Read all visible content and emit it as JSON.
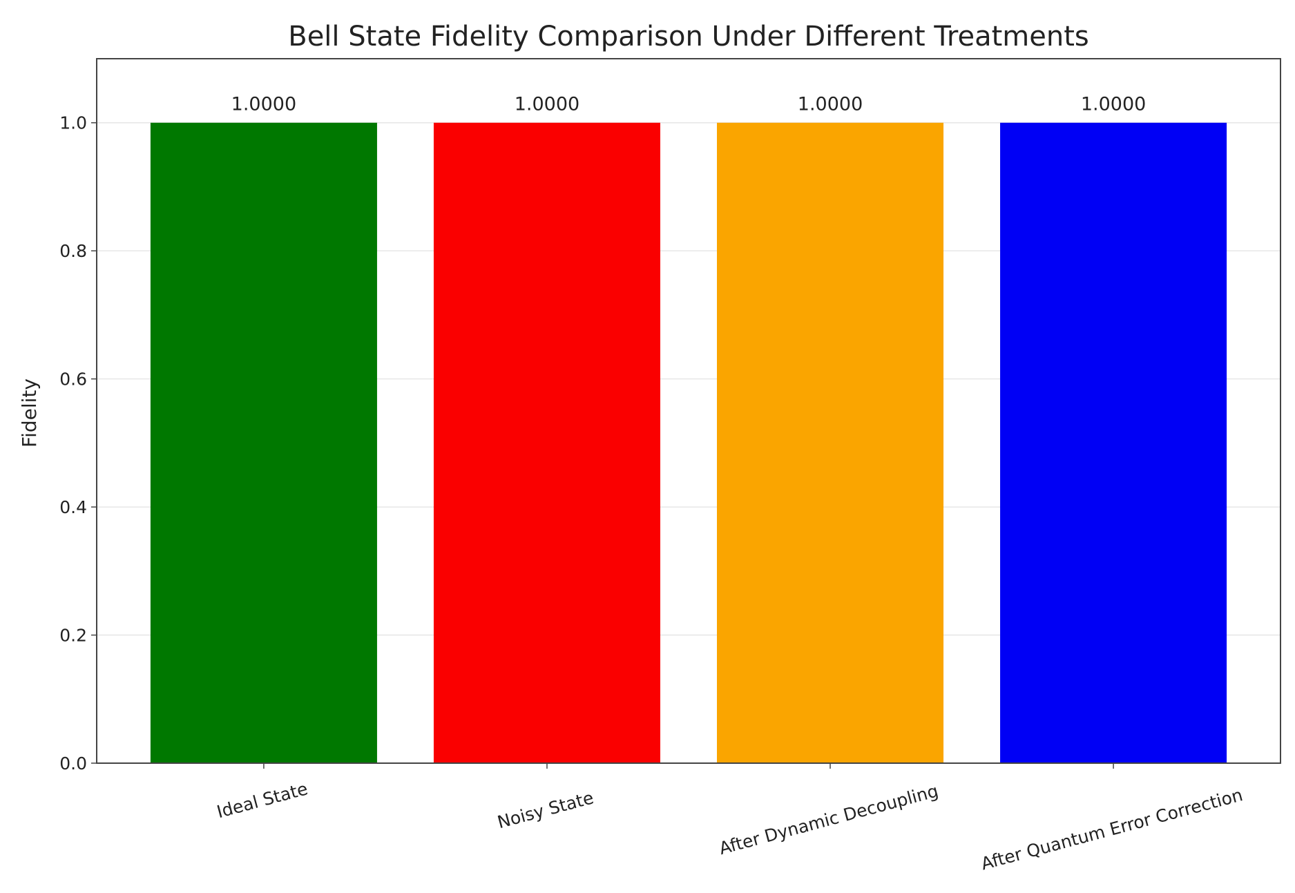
{
  "chart_data": {
    "type": "bar",
    "title": "Bell State Fidelity Comparison Under Different Treatments",
    "xlabel": "",
    "ylabel": "Fidelity",
    "categories": [
      "Ideal State",
      "Noisy State",
      "After Dynamic Decoupling",
      "After Quantum Error Correction"
    ],
    "values": [
      1.0,
      1.0,
      1.0,
      1.0
    ],
    "value_labels": [
      "1.0000",
      "1.0000",
      "1.0000",
      "1.0000"
    ],
    "colors": [
      "#007800",
      "#fa0000",
      "#faa500",
      "#0000f5"
    ],
    "ylim": [
      0,
      1.1
    ],
    "yticks": [
      0.0,
      0.2,
      0.4,
      0.6,
      0.8,
      1.0
    ],
    "ytick_labels": [
      "0.0",
      "0.2",
      "0.4",
      "0.6",
      "0.8",
      "1.0"
    ],
    "grid": "y",
    "bar_width": 0.8
  }
}
